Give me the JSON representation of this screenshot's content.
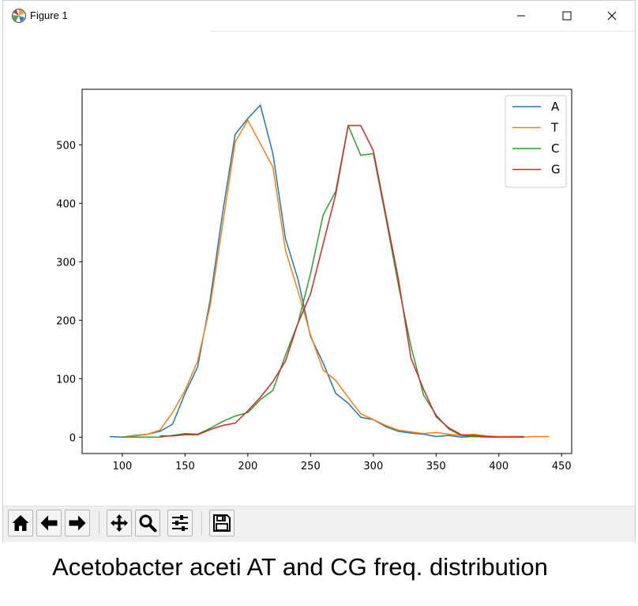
{
  "window": {
    "title": "Figure 1",
    "icons": {
      "app": "matplotlib-icon",
      "minimize": "minimize-icon",
      "maximize": "maximize-icon",
      "close": "close-icon"
    }
  },
  "toolbar": {
    "buttons": [
      {
        "name": "home-button",
        "icon": "home-icon"
      },
      {
        "name": "back-button",
        "icon": "arrow-left-icon"
      },
      {
        "name": "forward-button",
        "icon": "arrow-right-icon"
      },
      {
        "name": "pan-button",
        "icon": "move-icon"
      },
      {
        "name": "zoom-button",
        "icon": "magnifier-icon"
      },
      {
        "name": "configure-subplots-button",
        "icon": "sliders-icon"
      },
      {
        "name": "save-button",
        "icon": "floppy-icon"
      }
    ]
  },
  "caption": "Acetobacter aceti AT and CG freq. distribution",
  "chart_data": {
    "type": "line",
    "title": "",
    "xlabel": "",
    "ylabel": "",
    "xlim": [
      68,
      458
    ],
    "ylim": [
      -28,
      595
    ],
    "xticks": [
      100,
      150,
      200,
      250,
      300,
      350,
      400,
      450
    ],
    "yticks": [
      0,
      100,
      200,
      300,
      400,
      500
    ],
    "grid": false,
    "legend": "top-right",
    "series": [
      {
        "name": "A",
        "color": "#1f77b4",
        "x": [
          90,
          100,
          110,
          120,
          130,
          140,
          150,
          160,
          170,
          180,
          190,
          200,
          210,
          220,
          230,
          240,
          250,
          260,
          270,
          280,
          290,
          300,
          310,
          320,
          330,
          340,
          350,
          360,
          370,
          380,
          390,
          400,
          410,
          420
        ],
        "y": [
          1,
          0,
          3,
          5,
          10,
          22,
          75,
          120,
          235,
          385,
          518,
          545,
          568,
          485,
          340,
          270,
          172,
          127,
          75,
          58,
          34,
          30,
          18,
          10,
          7,
          5,
          1,
          3,
          0,
          1,
          1,
          0,
          1,
          1
        ]
      },
      {
        "name": "T",
        "color": "#ff7f0e",
        "x": [
          100,
          110,
          120,
          130,
          140,
          150,
          160,
          170,
          180,
          190,
          200,
          210,
          220,
          230,
          240,
          250,
          260,
          270,
          280,
          290,
          300,
          310,
          320,
          330,
          340,
          350,
          360,
          370,
          380,
          390,
          400,
          410,
          420,
          430,
          440
        ],
        "y": [
          0,
          2,
          5,
          12,
          42,
          80,
          130,
          225,
          365,
          505,
          542,
          502,
          462,
          320,
          250,
          175,
          115,
          97,
          68,
          40,
          30,
          20,
          12,
          9,
          6,
          8,
          5,
          3,
          5,
          2,
          1,
          1,
          0,
          1,
          1
        ]
      },
      {
        "name": "C",
        "color": "#2ca02c",
        "x": [
          100,
          110,
          120,
          130,
          140,
          150,
          160,
          170,
          180,
          190,
          200,
          210,
          220,
          230,
          240,
          250,
          260,
          270,
          280,
          290,
          300,
          310,
          320,
          330,
          340,
          350,
          360,
          370,
          380,
          390,
          400
        ],
        "y": [
          0,
          0,
          0,
          0,
          3,
          6,
          5,
          15,
          27,
          36,
          42,
          64,
          80,
          140,
          195,
          280,
          380,
          420,
          533,
          482,
          485,
          375,
          260,
          155,
          72,
          38,
          14,
          3,
          1,
          0,
          0
        ]
      },
      {
        "name": "G",
        "color": "#d62728",
        "x": [
          130,
          140,
          150,
          160,
          170,
          180,
          190,
          200,
          210,
          220,
          230,
          240,
          250,
          260,
          270,
          280,
          290,
          300,
          310,
          320,
          330,
          340,
          350,
          360,
          370,
          380,
          390,
          400,
          410,
          420
        ],
        "y": [
          2,
          2,
          4,
          4,
          13,
          20,
          24,
          45,
          68,
          95,
          130,
          195,
          245,
          330,
          415,
          533,
          533,
          490,
          380,
          270,
          135,
          82,
          35,
          16,
          4,
          3,
          1,
          0,
          0,
          0
        ]
      }
    ]
  }
}
